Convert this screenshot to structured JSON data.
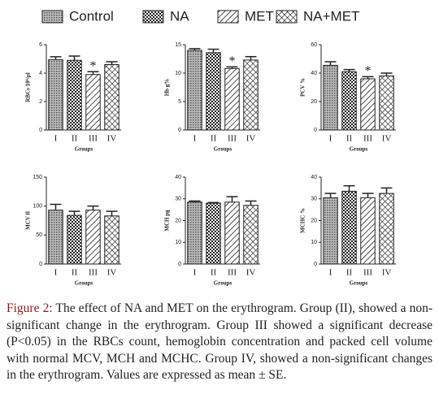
{
  "legend": [
    "Control",
    "NA",
    "MET",
    "NA+MET"
  ],
  "chart_data": [
    {
      "type": "bar",
      "ylabel": "RBCs 10⁶/µl",
      "xlabel": "Groups",
      "categories": [
        "I",
        "II",
        "III",
        "IV"
      ],
      "values": [
        4.95,
        4.9,
        3.9,
        4.6
      ],
      "errors": [
        0.2,
        0.3,
        0.2,
        0.2
      ],
      "ylim": [
        0,
        6
      ],
      "yticks": [
        0,
        2,
        4,
        6
      ],
      "annotation": {
        "text": "*",
        "category": "III"
      }
    },
    {
      "type": "bar",
      "ylabel": "Hb g%",
      "xlabel": "Groups",
      "categories": [
        "I",
        "II",
        "III",
        "IV"
      ],
      "values": [
        14,
        13.6,
        10.8,
        12.3
      ],
      "errors": [
        0.3,
        0.6,
        0.3,
        0.6
      ],
      "ylim": [
        0,
        15
      ],
      "yticks": [
        0,
        5,
        10,
        15
      ],
      "annotation": {
        "text": "*",
        "category": "III"
      }
    },
    {
      "type": "bar",
      "ylabel": "PCV %",
      "xlabel": "Groups",
      "categories": [
        "I",
        "II",
        "III",
        "IV"
      ],
      "values": [
        45.5,
        41,
        36,
        38
      ],
      "errors": [
        2.5,
        1.5,
        1.5,
        2
      ],
      "ylim": [
        0,
        60
      ],
      "yticks": [
        0,
        20,
        40,
        60
      ],
      "annotation": {
        "text": "*",
        "category": "III"
      }
    },
    {
      "type": "bar",
      "ylabel": "MCV fl",
      "xlabel": "Groups",
      "categories": [
        "I",
        "II",
        "III",
        "IV"
      ],
      "values": [
        93,
        84,
        93,
        83
      ],
      "errors": [
        10,
        7,
        7,
        8
      ],
      "ylim": [
        0,
        150
      ],
      "yticks": [
        0,
        50,
        100,
        150
      ]
    },
    {
      "type": "bar",
      "ylabel": "MCH pg",
      "xlabel": "Groups",
      "categories": [
        "I",
        "II",
        "III",
        "IV"
      ],
      "values": [
        28.5,
        28,
        28.5,
        27
      ],
      "errors": [
        0.5,
        0.3,
        2.5,
        2
      ],
      "ylim": [
        0,
        40
      ],
      "yticks": [
        0,
        10,
        20,
        30,
        40
      ]
    },
    {
      "type": "bar",
      "ylabel": "MCHC %",
      "xlabel": "Groups",
      "categories": [
        "I",
        "II",
        "III",
        "IV"
      ],
      "values": [
        30.5,
        33.5,
        30.5,
        32.5
      ],
      "errors": [
        2,
        2.5,
        2,
        2.5
      ],
      "ylim": [
        0,
        40
      ],
      "yticks": [
        0,
        10,
        20,
        30,
        40
      ]
    }
  ],
  "caption": {
    "label": "Figure 2:",
    "text": " The effect of NA and MET on the erythrogram. Group (II), showed a non-significant change in the erythrogram. Group III showed a significant decrease (P<0.05) in the RBCs count, hemoglobin concentration and packed cell volume with normal MCV, MCH and MCHC. Group IV, showed a non-significant changes in the erythrogram. Values are expressed as mean ± SE."
  }
}
